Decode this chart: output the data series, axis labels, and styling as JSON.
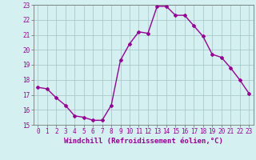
{
  "x": [
    0,
    1,
    2,
    3,
    4,
    5,
    6,
    7,
    8,
    9,
    10,
    11,
    12,
    13,
    14,
    15,
    16,
    17,
    18,
    19,
    20,
    21,
    22,
    23
  ],
  "y": [
    17.5,
    17.4,
    16.8,
    16.3,
    15.6,
    15.5,
    15.3,
    15.3,
    16.3,
    19.3,
    20.4,
    21.2,
    21.1,
    22.9,
    22.9,
    22.3,
    22.3,
    21.6,
    20.9,
    19.7,
    19.5,
    18.8,
    18.0,
    17.1
  ],
  "line_color": "#990099",
  "marker": "D",
  "marker_size": 2,
  "bg_color": "#d5f0f0",
  "grid_color": "#aacccc",
  "ylim": [
    15,
    23
  ],
  "xlim": [
    -0.5,
    23.5
  ],
  "yticks": [
    15,
    16,
    17,
    18,
    19,
    20,
    21,
    22,
    23
  ],
  "xticks": [
    0,
    1,
    2,
    3,
    4,
    5,
    6,
    7,
    8,
    9,
    10,
    11,
    12,
    13,
    14,
    15,
    16,
    17,
    18,
    19,
    20,
    21,
    22,
    23
  ],
  "xlabel": "Windchill (Refroidissement éolien,°C)",
  "xlabel_fontsize": 6.5,
  "tick_fontsize": 5.5,
  "line_width": 1.0
}
